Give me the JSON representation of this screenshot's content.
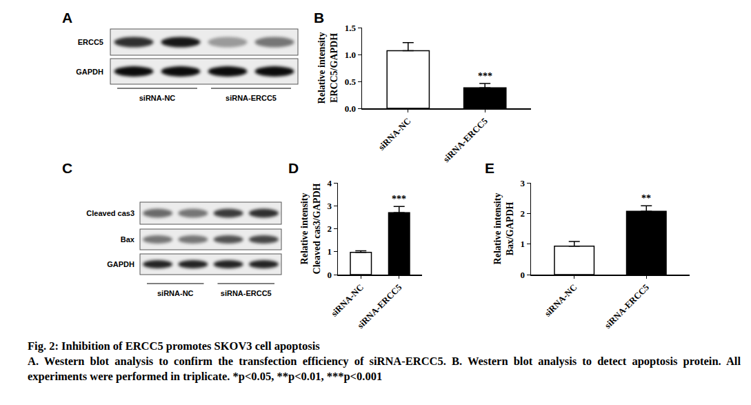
{
  "chart_data": [
    {
      "type": "bar",
      "panel": "B",
      "categories": [
        "siRNA-NC",
        "siRNA-ERCC5"
      ],
      "values": [
        1.07,
        0.38
      ],
      "errors": [
        0.15,
        0.08
      ],
      "colors": [
        "#ffffff",
        "#000000"
      ],
      "y_label": "Relative intensity\nERCC5/GAPDH",
      "ylim": [
        0,
        1.5
      ],
      "yticks": [
        {
          "value": 0,
          "label": "0.0"
        },
        {
          "value": 0.5,
          "label": "0.5"
        },
        {
          "value": 1,
          "label": "1.0"
        },
        {
          "value": 1.5,
          "label": "1.5"
        }
      ],
      "annotations": [
        {
          "text": "***",
          "category": "siRNA-ERCC5"
        }
      ],
      "grid": false
    },
    {
      "type": "bar",
      "panel": "D",
      "categories": [
        "siRNA-NC",
        "siRNA-ERCC5"
      ],
      "values": [
        0.97,
        2.7
      ],
      "errors": [
        0.07,
        0.27
      ],
      "colors": [
        "#ffffff",
        "#000000"
      ],
      "y_label": "Relative intensity\nCleaved cas3/GAPDH",
      "ylim": [
        0,
        4
      ],
      "yticks": [
        0,
        1,
        2,
        3,
        4
      ],
      "annotations": [
        {
          "text": "***",
          "category": "siRNA-ERCC5"
        }
      ],
      "grid": false
    },
    {
      "type": "bar",
      "panel": "E",
      "categories": [
        "siRNA-NC",
        "siRNA-ERCC5"
      ],
      "values": [
        0.93,
        2.07
      ],
      "errors": [
        0.15,
        0.18
      ],
      "colors": [
        "#ffffff",
        "#000000"
      ],
      "y_label": "Relative intensity\nBax/GAPDH",
      "ylim": [
        0,
        3
      ],
      "yticks": [
        0,
        1,
        2,
        3
      ],
      "annotations": [
        {
          "text": "**",
          "category": "siRNA-ERCC5"
        }
      ],
      "grid": false
    }
  ],
  "blots": [
    {
      "panel": "A",
      "rows": [
        {
          "label": "ERCC5",
          "intensity": [
            0.8,
            0.9,
            0.35,
            0.5
          ]
        },
        {
          "label": "GAPDH",
          "intensity": [
            0.95,
            0.95,
            0.95,
            0.95
          ]
        }
      ],
      "groups": [
        {
          "label": "siRNA-NC",
          "lanes": 2
        },
        {
          "label": "siRNA-ERCC5",
          "lanes": 2
        }
      ]
    },
    {
      "panel": "C",
      "rows": [
        {
          "label": "Cleaved cas3",
          "intensity": [
            0.55,
            0.5,
            0.75,
            0.8
          ]
        },
        {
          "label": "Bax",
          "intensity": [
            0.5,
            0.5,
            0.65,
            0.7
          ]
        },
        {
          "label": "GAPDH",
          "intensity": [
            0.85,
            0.85,
            0.85,
            0.85
          ]
        }
      ],
      "groups": [
        {
          "label": "siRNA-NC",
          "lanes": 2
        },
        {
          "label": "siRNA-ERCC5",
          "lanes": 2
        }
      ]
    }
  ],
  "caption": {
    "title": "Fig. 2: Inhibition of ERCC5 promotes SKOV3 cell apoptosis",
    "text": "A. Western blot analysis to confirm the transfection efficiency of siRNA-ERCC5. B. Western blot analysis to detect apoptosis protein. All experiments were performed in triplicate. *p<0.05, **p<0.01, ***p<0.001"
  }
}
